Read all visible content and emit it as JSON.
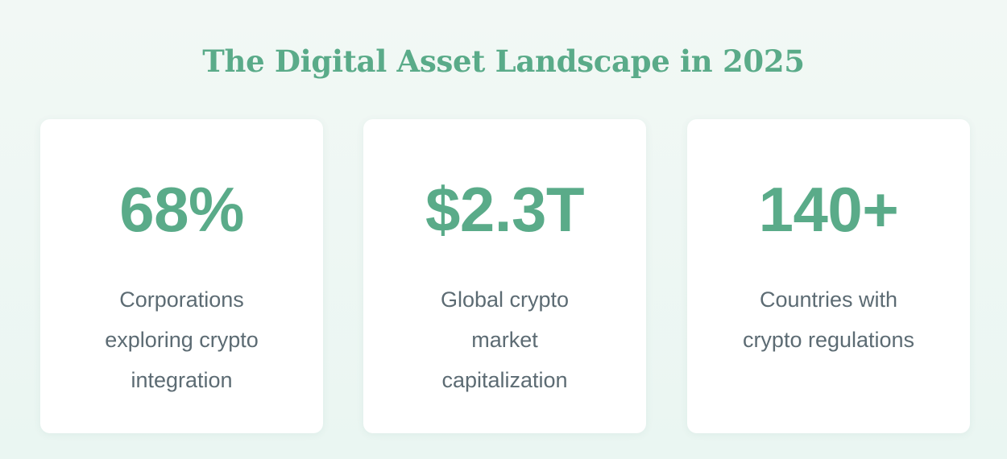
{
  "header": {
    "title": "The Digital Asset Landscape in 2025"
  },
  "stats": [
    {
      "value": "68%",
      "label": "Corporations exploring crypto integration"
    },
    {
      "value": "$2.3T",
      "label": "Global crypto market capitalization"
    },
    {
      "value": "140+",
      "label": "Countries with crypto regulations"
    }
  ],
  "colors": {
    "accent": "#5aab89",
    "label_text": "#5c6b73",
    "background": "#eef7f3",
    "card": "#ffffff"
  }
}
